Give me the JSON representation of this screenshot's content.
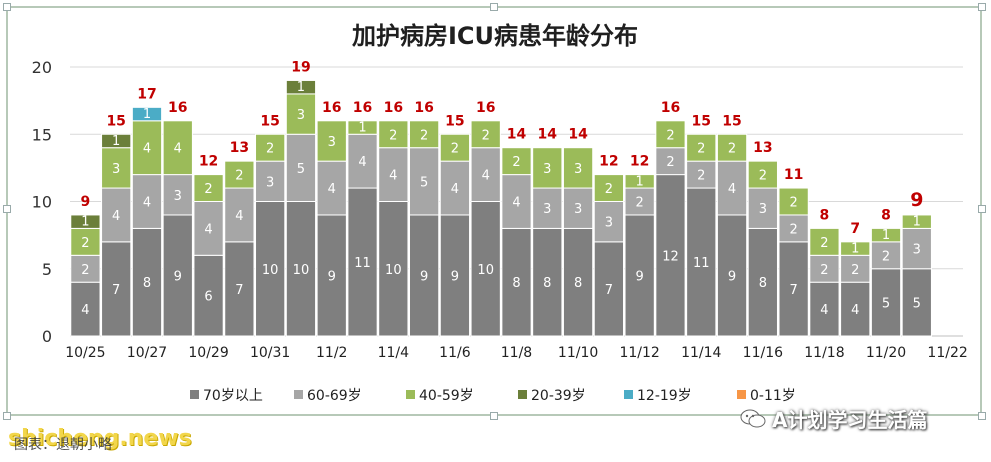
{
  "chart_data": {
    "type": "bar",
    "stacked": true,
    "title": "加护病房ICU病患年龄分布",
    "xlabel": "",
    "ylabel": "",
    "ylim": [
      0,
      20
    ],
    "yticks": [
      0,
      5,
      10,
      15,
      20
    ],
    "grid": true,
    "legend_position": "bottom",
    "categories": [
      "10/25",
      "10/26",
      "10/27",
      "10/28",
      "10/29",
      "10/30",
      "10/31",
      "11/1",
      "11/2",
      "11/3",
      "11/4",
      "11/5",
      "11/6",
      "11/7",
      "11/8",
      "11/9",
      "11/10",
      "11/11",
      "11/12",
      "11/13",
      "11/14",
      "11/15",
      "11/16",
      "11/17",
      "11/18",
      "11/19",
      "11/20",
      "11/21",
      "11/22"
    ],
    "tick_labels": [
      "10/25",
      "10/27",
      "10/29",
      "10/31",
      "11/2",
      "11/4",
      "11/6",
      "11/8",
      "11/10",
      "11/12",
      "11/14",
      "11/16",
      "11/18",
      "11/20",
      "11/22"
    ],
    "series": [
      {
        "name": "70岁以上",
        "color": "#7f7f7f",
        "values": [
          4,
          7,
          8,
          9,
          6,
          7,
          10,
          10,
          9,
          11,
          10,
          9,
          9,
          10,
          8,
          8,
          8,
          7,
          9,
          12,
          11,
          9,
          8,
          7,
          4,
          4,
          5,
          5,
          null
        ]
      },
      {
        "name": "60-69岁",
        "color": "#a6a6a6",
        "values": [
          2,
          4,
          4,
          3,
          4,
          4,
          3,
          5,
          4,
          4,
          4,
          5,
          4,
          4,
          4,
          3,
          3,
          3,
          2,
          2,
          2,
          4,
          3,
          2,
          2,
          2,
          2,
          3,
          null
        ]
      },
      {
        "name": "40-59岁",
        "color": "#9bbb59",
        "values": [
          2,
          3,
          4,
          4,
          2,
          2,
          2,
          3,
          3,
          1,
          2,
          2,
          2,
          2,
          2,
          3,
          3,
          2,
          1,
          2,
          2,
          2,
          2,
          2,
          2,
          1,
          1,
          1,
          null
        ]
      },
      {
        "name": "20-39岁",
        "color": "#6b7f3a",
        "values": [
          1,
          1,
          0,
          0,
          0,
          0,
          0,
          1,
          0,
          0,
          0,
          0,
          0,
          0,
          0,
          0,
          0,
          0,
          0,
          0,
          0,
          0,
          0,
          0,
          0,
          0,
          0,
          0,
          null
        ]
      },
      {
        "name": "12-19岁",
        "color": "#4bacc6",
        "values": [
          0,
          0,
          1,
          0,
          0,
          0,
          0,
          0,
          0,
          0,
          0,
          0,
          0,
          0,
          0,
          0,
          0,
          0,
          0,
          0,
          0,
          0,
          0,
          0,
          0,
          0,
          0,
          0,
          null
        ]
      },
      {
        "name": "0-11岁",
        "color": "#f79646",
        "values": [
          0,
          0,
          0,
          0,
          0,
          0,
          0,
          0,
          0,
          0,
          0,
          0,
          0,
          0,
          0,
          0,
          0,
          0,
          0,
          0,
          0,
          0,
          0,
          0,
          0,
          0,
          0,
          0,
          null
        ]
      }
    ],
    "totals": [
      9,
      15,
      17,
      16,
      12,
      13,
      15,
      19,
      16,
      16,
      16,
      16,
      15,
      16,
      14,
      14,
      14,
      12,
      12,
      16,
      15,
      15,
      13,
      11,
      8,
      7,
      8,
      9,
      null
    ],
    "total_label_color": "#c00000"
  },
  "watermark": "shicheng.news",
  "source_note": "图表：退朝小略",
  "brand_name": "A计划学习生活篇"
}
